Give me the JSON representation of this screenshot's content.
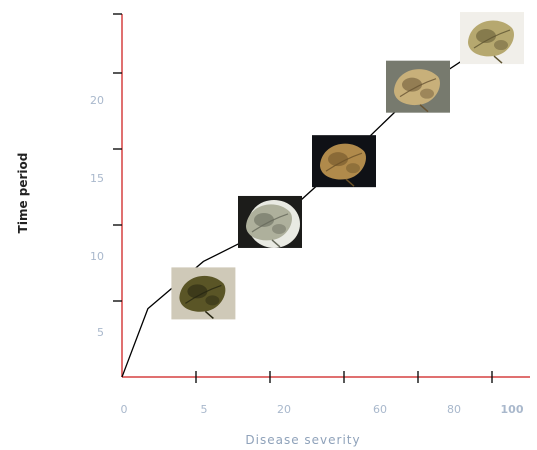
{
  "chart_data": {
    "type": "line",
    "title": "",
    "xlabel": "Disease severity",
    "ylabel": "Time period",
    "x_tick_labels": [
      "0",
      "5",
      "20",
      "",
      "60",
      "80",
      "100"
    ],
    "y_tick_labels": [
      "5",
      "10",
      "15",
      "20"
    ],
    "xlim": [
      0,
      6
    ],
    "ylim": [
      0,
      24.5
    ],
    "grid": false,
    "legend": "none",
    "series": [
      {
        "points": [
          {
            "x": 0,
            "y": 0
          },
          {
            "x": 0.35,
            "y": 4.5
          },
          {
            "x": 1.1,
            "y": 7.6
          },
          {
            "x": 2.0,
            "y": 9.8
          },
          {
            "x": 3.0,
            "y": 14.2
          },
          {
            "x": 4.0,
            "y": 18.9
          },
          {
            "x": 5.0,
            "y": 22.1
          },
          {
            "x": 5.4,
            "y": 23.6
          }
        ]
      }
    ],
    "thumbnails": [
      {
        "name": "leaf-photo-stage-1",
        "x": 1.1,
        "y": 5.5,
        "bg": "#cfc9b8",
        "leaf": "#5a5526",
        "dark": "#262511"
      },
      {
        "name": "leaf-photo-stage-2",
        "x": 2.0,
        "y": 10.2,
        "bg": "#1c1c1a",
        "leaf": "#aeb09c",
        "dark": "#65685a"
      },
      {
        "name": "leaf-photo-stage-3",
        "x": 3.0,
        "y": 14.2,
        "bg": "#0f1116",
        "leaf": "#b08a4b",
        "dark": "#6b5128"
      },
      {
        "name": "leaf-photo-stage-4",
        "x": 4.0,
        "y": 19.1,
        "bg": "#777a6e",
        "leaf": "#c8b07a",
        "dark": "#685433"
      },
      {
        "name": "leaf-photo-stage-5",
        "x": 5.0,
        "y": 22.3,
        "bg": "#f1efea",
        "leaf": "#b6a86f",
        "dark": "#5f5532"
      }
    ],
    "colors": {
      "axis": "#e07070",
      "tick": "#111111",
      "line": "#000000"
    }
  }
}
